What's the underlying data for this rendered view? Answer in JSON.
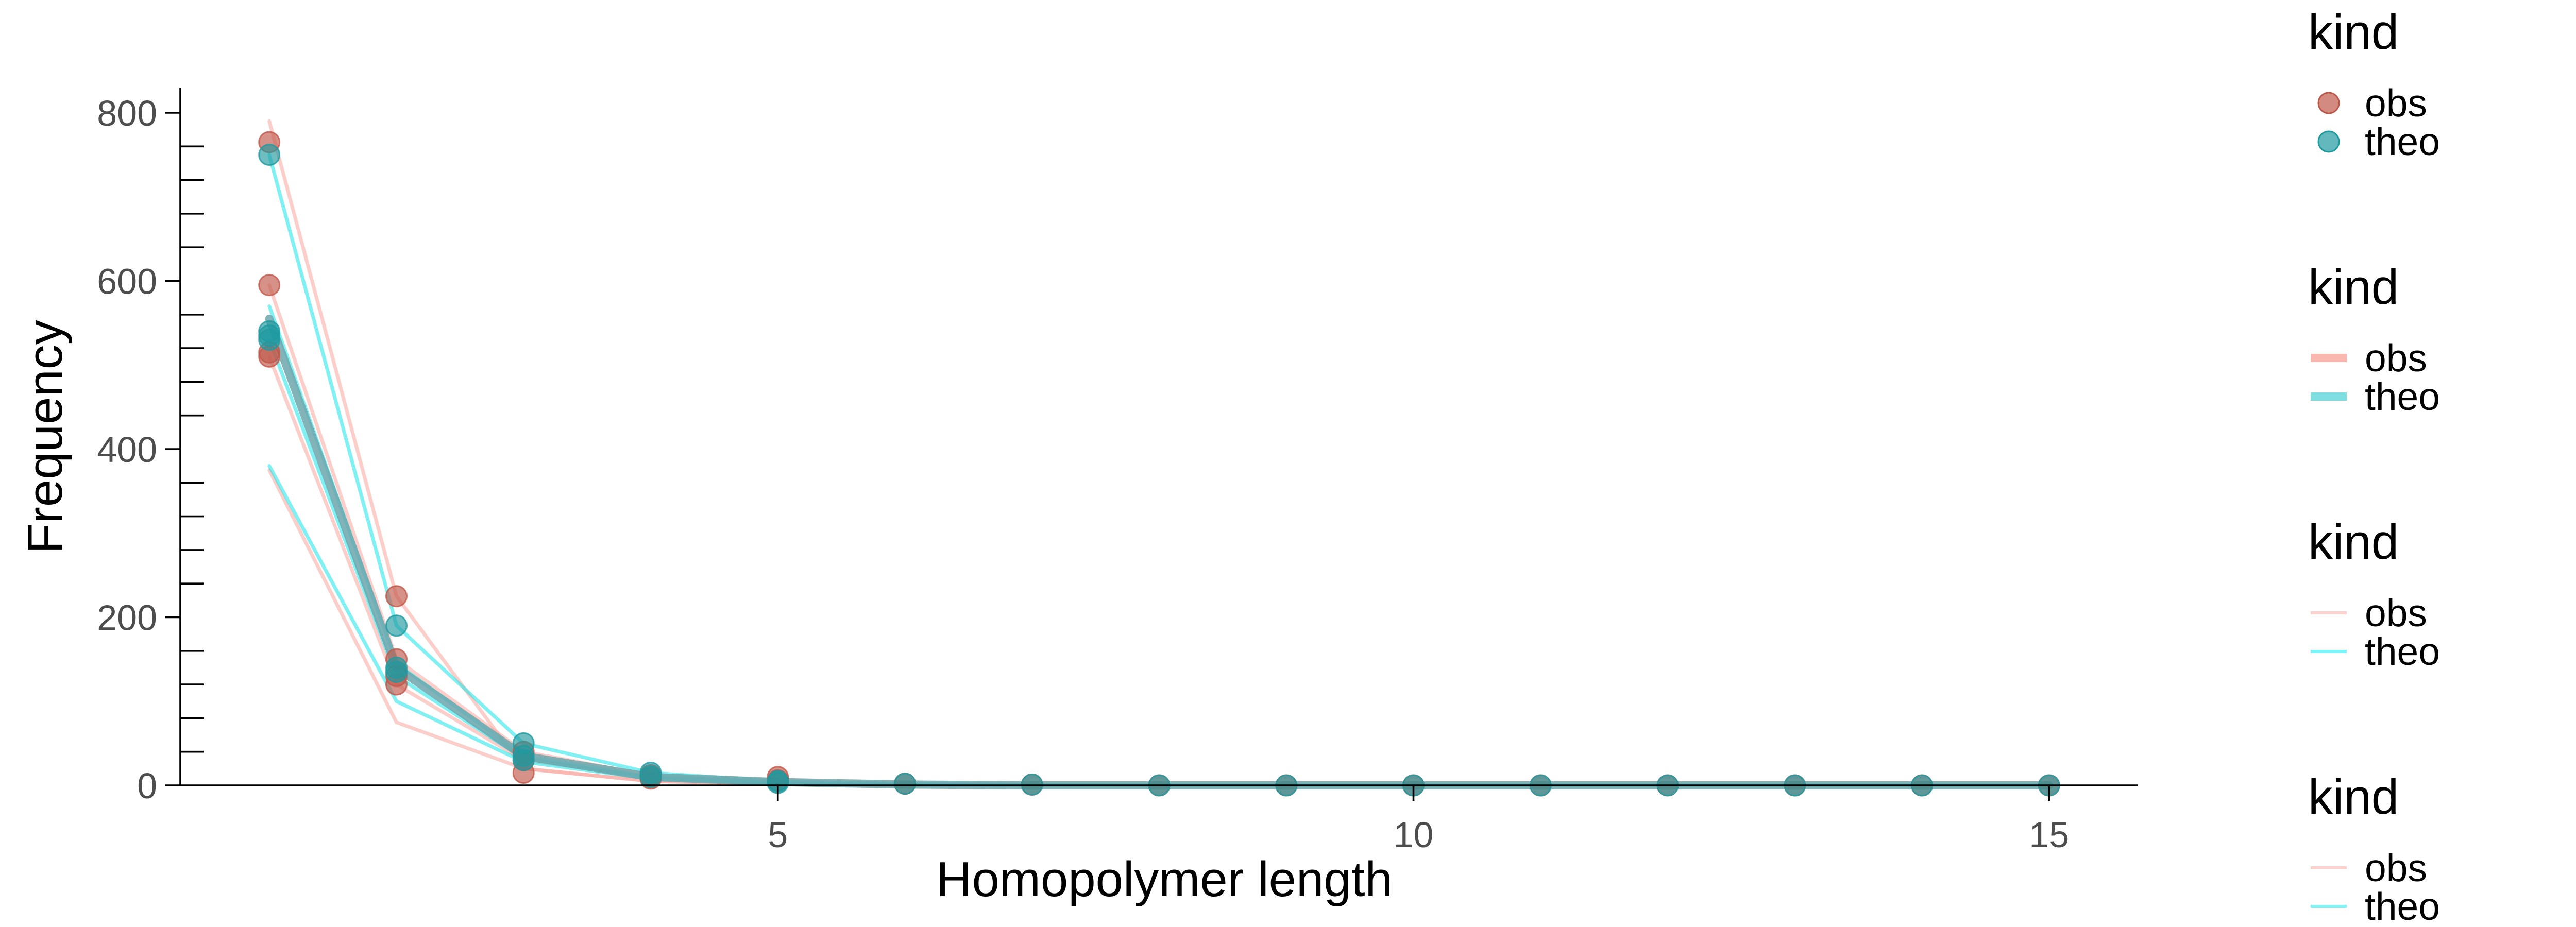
{
  "colors": {
    "obs_point": "#c0584a",
    "theo_point": "#1f9aa0",
    "obs_line": "#f8a59c",
    "theo_line": "#19e3e8",
    "mean_line": "#6ca6ab"
  },
  "chart_data": {
    "type": "line",
    "xlabel": "Homopolymer length",
    "ylabel": "Frequency",
    "xlim": [
      0.3,
      15.7
    ],
    "ylim": [
      0,
      830
    ],
    "xticks": [
      5,
      10,
      15
    ],
    "yticks": [
      0,
      200,
      400,
      600,
      800
    ],
    "y_minor_step": 40,
    "grid": false,
    "legend_position": "right",
    "legends": [
      {
        "title": "kind",
        "style": "point",
        "items": [
          {
            "label": "obs",
            "color": "#c0584a"
          },
          {
            "label": "theo",
            "color": "#1f9aa0"
          }
        ]
      },
      {
        "title": "kind",
        "style": "thick-line",
        "items": [
          {
            "label": "obs",
            "color": "#f8a59c"
          },
          {
            "label": "theo",
            "color": "#5fd6d9"
          }
        ]
      },
      {
        "title": "kind",
        "style": "thin-line",
        "items": [
          {
            "label": "obs",
            "color": "#f8c4bf"
          },
          {
            "label": "theo",
            "color": "#5ff0f3"
          }
        ]
      },
      {
        "title": "kind",
        "style": "thin-line",
        "items": [
          {
            "label": "obs",
            "color": "#f8c4bf"
          },
          {
            "label": "theo",
            "color": "#5ff0f3"
          }
        ]
      }
    ],
    "series": [
      {
        "kind": "obs",
        "role": "line",
        "x": [
          1,
          2,
          3,
          4,
          5,
          6,
          7,
          8,
          9,
          10,
          11,
          12,
          13,
          14,
          15
        ],
        "y": [
          790,
          225,
          20,
          5,
          2,
          0,
          0,
          0,
          0,
          0,
          0,
          0,
          0,
          0,
          0
        ]
      },
      {
        "kind": "obs",
        "role": "line",
        "x": [
          1,
          2,
          3,
          4,
          5,
          6,
          7,
          8,
          9,
          10,
          11,
          12,
          13,
          14,
          15
        ],
        "y": [
          595,
          150,
          40,
          12,
          6,
          2,
          1,
          0,
          0,
          0,
          0,
          0,
          0,
          0,
          0
        ]
      },
      {
        "kind": "obs",
        "role": "line",
        "x": [
          1,
          2,
          3,
          4,
          5,
          6,
          7,
          8,
          9,
          10,
          11,
          12,
          13,
          14,
          15
        ],
        "y": [
          510,
          120,
          30,
          10,
          4,
          1,
          0,
          0,
          0,
          0,
          0,
          0,
          0,
          0,
          0
        ]
      },
      {
        "kind": "obs",
        "role": "line",
        "x": [
          1,
          2,
          3,
          4,
          5,
          6,
          7,
          8,
          9,
          10,
          11,
          12,
          13,
          14,
          15
        ],
        "y": [
          375,
          75,
          20,
          5,
          1,
          0,
          0,
          0,
          0,
          0,
          0,
          0,
          0,
          0,
          0
        ]
      },
      {
        "kind": "theo",
        "role": "line",
        "x": [
          1,
          2,
          3,
          4,
          5,
          6,
          7,
          8,
          9,
          10,
          11,
          12,
          13,
          14,
          15
        ],
        "y": [
          750,
          190,
          50,
          15,
          5,
          2,
          1,
          0,
          0,
          0,
          0,
          0,
          0,
          0,
          0
        ]
      },
      {
        "kind": "theo",
        "role": "line",
        "x": [
          1,
          2,
          3,
          4,
          5,
          6,
          7,
          8,
          9,
          10,
          11,
          12,
          13,
          14,
          15
        ],
        "y": [
          570,
          145,
          35,
          10,
          3,
          1,
          0,
          0,
          0,
          0,
          0,
          0,
          0,
          0,
          0
        ]
      },
      {
        "kind": "theo",
        "role": "line",
        "x": [
          1,
          2,
          3,
          4,
          5,
          6,
          7,
          8,
          9,
          10,
          11,
          12,
          13,
          14,
          15
        ],
        "y": [
          530,
          130,
          32,
          9,
          3,
          1,
          0,
          0,
          0,
          0,
          0,
          0,
          0,
          0,
          0
        ]
      },
      {
        "kind": "theo",
        "role": "line",
        "x": [
          1,
          2,
          3,
          4,
          5,
          6,
          7,
          8,
          9,
          10,
          11,
          12,
          13,
          14,
          15
        ],
        "y": [
          380,
          100,
          28,
          8,
          2,
          0,
          0,
          0,
          0,
          0,
          0,
          0,
          0,
          0,
          0
        ]
      },
      {
        "kind": "mean",
        "role": "thick-line",
        "x": [
          1,
          2,
          3,
          4,
          5,
          6,
          7,
          8,
          9,
          10,
          11,
          12,
          13,
          14,
          15
        ],
        "y": [
          555,
          140,
          35,
          10,
          4,
          1,
          0,
          0,
          0,
          0,
          0,
          0,
          0,
          0,
          0
        ]
      }
    ],
    "points": [
      {
        "kind": "obs",
        "x": [
          1,
          1,
          1,
          1,
          2,
          2,
          2,
          2,
          3,
          3,
          3,
          4,
          4,
          5,
          5,
          6,
          7,
          8,
          9,
          10,
          11,
          12,
          13,
          14,
          15
        ],
        "y": [
          765,
          595,
          515,
          510,
          225,
          150,
          130,
          120,
          40,
          30,
          15,
          12,
          8,
          10,
          6,
          2,
          1,
          0,
          0,
          0,
          0,
          0,
          0,
          0,
          0
        ]
      },
      {
        "kind": "theo",
        "x": [
          1,
          1,
          1,
          1,
          2,
          2,
          2,
          3,
          3,
          3,
          4,
          4,
          5,
          5,
          6,
          7,
          8,
          9,
          10,
          11,
          12,
          13,
          14,
          15
        ],
        "y": [
          750,
          540,
          535,
          530,
          190,
          140,
          135,
          50,
          35,
          30,
          15,
          10,
          5,
          3,
          2,
          1,
          0,
          0,
          0,
          0,
          0,
          0,
          0,
          0
        ]
      }
    ]
  }
}
